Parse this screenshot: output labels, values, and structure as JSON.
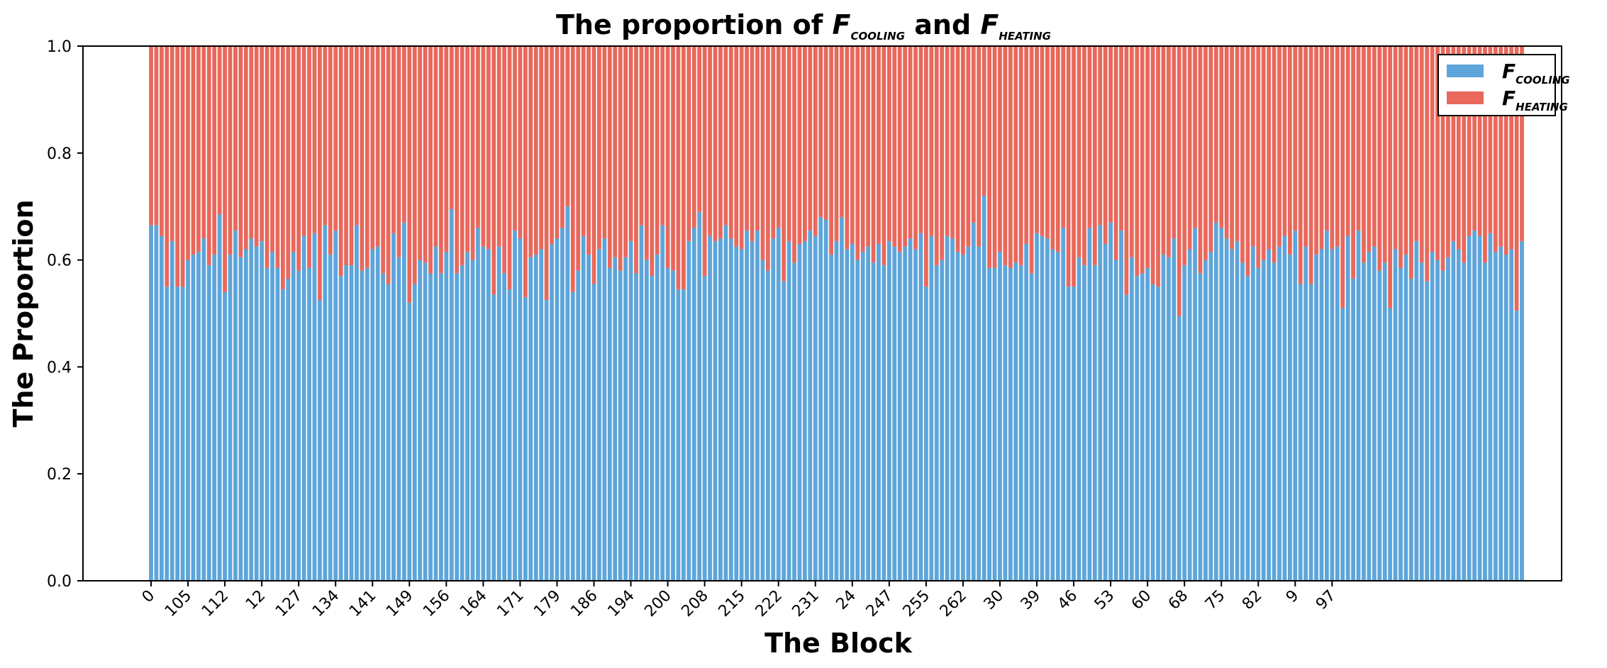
{
  "chart_data": {
    "type": "bar",
    "stacked": true,
    "title": {
      "prefix": "The proportion of ",
      "var1": "F",
      "var1_sub": "COOLING",
      "middle": " and ",
      "var2": "F",
      "var2_sub": "HEATING"
    },
    "xlabel": "The Block",
    "ylabel": "The Proportion",
    "ylim": [
      0,
      1
    ],
    "yticks": [
      "0.0",
      "0.2",
      "0.4",
      "0.6",
      "0.8",
      "1.0"
    ],
    "xtick_labels": [
      "0",
      "105",
      "112",
      "12",
      "127",
      "134",
      "141",
      "149",
      "156",
      "164",
      "171",
      "179",
      "186",
      "194",
      "200",
      "208",
      "215",
      "222",
      "231",
      "24",
      "247",
      "255",
      "262",
      "30",
      "39",
      "46",
      "53",
      "60",
      "68",
      "75",
      "82",
      "9",
      "97"
    ],
    "xtick_every": 7,
    "legend_position": "top-right",
    "grid": false,
    "series": [
      {
        "name_main": "F",
        "name_sub": "COOLING",
        "color": "#5DA5DA"
      },
      {
        "name_main": "F",
        "name_sub": "HEATING",
        "color": "#E8685C"
      }
    ],
    "cooling_values": [
      0.665,
      0.665,
      0.645,
      0.55,
      0.635,
      0.55,
      0.55,
      0.6,
      0.61,
      0.615,
      0.64,
      0.59,
      0.61,
      0.685,
      0.54,
      0.61,
      0.655,
      0.605,
      0.62,
      0.64,
      0.625,
      0.635,
      0.585,
      0.615,
      0.585,
      0.545,
      0.565,
      0.615,
      0.58,
      0.645,
      0.585,
      0.65,
      0.525,
      0.665,
      0.61,
      0.655,
      0.57,
      0.59,
      0.59,
      0.665,
      0.58,
      0.585,
      0.62,
      0.625,
      0.575,
      0.555,
      0.65,
      0.605,
      0.67,
      0.52,
      0.555,
      0.6,
      0.595,
      0.575,
      0.625,
      0.575,
      0.615,
      0.695,
      0.575,
      0.59,
      0.615,
      0.6,
      0.66,
      0.625,
      0.62,
      0.535,
      0.625,
      0.575,
      0.545,
      0.655,
      0.64,
      0.53,
      0.605,
      0.61,
      0.62,
      0.525,
      0.63,
      0.64,
      0.66,
      0.7,
      0.54,
      0.58,
      0.645,
      0.61,
      0.555,
      0.62,
      0.64,
      0.585,
      0.605,
      0.58,
      0.605,
      0.635,
      0.575,
      0.665,
      0.6,
      0.57,
      0.61,
      0.665,
      0.585,
      0.58,
      0.545,
      0.545,
      0.635,
      0.66,
      0.69,
      0.57,
      0.645,
      0.635,
      0.64,
      0.665,
      0.64,
      0.625,
      0.62,
      0.655,
      0.635,
      0.655,
      0.6,
      0.58,
      0.64,
      0.66,
      0.56,
      0.635,
      0.595,
      0.63,
      0.635,
      0.655,
      0.645,
      0.68,
      0.675,
      0.61,
      0.635,
      0.68,
      0.62,
      0.63,
      0.6,
      0.615,
      0.625,
      0.595,
      0.63,
      0.59,
      0.635,
      0.625,
      0.615,
      0.625,
      0.64,
      0.62,
      0.65,
      0.55,
      0.645,
      0.59,
      0.6,
      0.645,
      0.64,
      0.615,
      0.61,
      0.625,
      0.67,
      0.625,
      0.72,
      0.585,
      0.585,
      0.615,
      0.59,
      0.585,
      0.595,
      0.59,
      0.63,
      0.575,
      0.65,
      0.645,
      0.64,
      0.62,
      0.615,
      0.66,
      0.55,
      0.55,
      0.605,
      0.59,
      0.66,
      0.59,
      0.665,
      0.63,
      0.67,
      0.6,
      0.655,
      0.535,
      0.605,
      0.57,
      0.575,
      0.585,
      0.555,
      0.55,
      0.61,
      0.605,
      0.64,
      0.495,
      0.59,
      0.62,
      0.66,
      0.575,
      0.6,
      0.615,
      0.67,
      0.66,
      0.64,
      0.62,
      0.635,
      0.595,
      0.57,
      0.625,
      0.585,
      0.6,
      0.62,
      0.595,
      0.625,
      0.645,
      0.61,
      0.655,
      0.555,
      0.625,
      0.555,
      0.61,
      0.62,
      0.655,
      0.62,
      0.625,
      0.51,
      0.645,
      0.565,
      0.655,
      0.595,
      0.615,
      0.625,
      0.58,
      0.595,
      0.51,
      0.62,
      0.585,
      0.61,
      0.565,
      0.635,
      0.595,
      0.56,
      0.615,
      0.6,
      0.58,
      0.605,
      0.635,
      0.62,
      0.595,
      0.645,
      0.655,
      0.645,
      0.595,
      0.65,
      0.615,
      0.625,
      0.61,
      0.62,
      0.505,
      0.635
    ]
  }
}
